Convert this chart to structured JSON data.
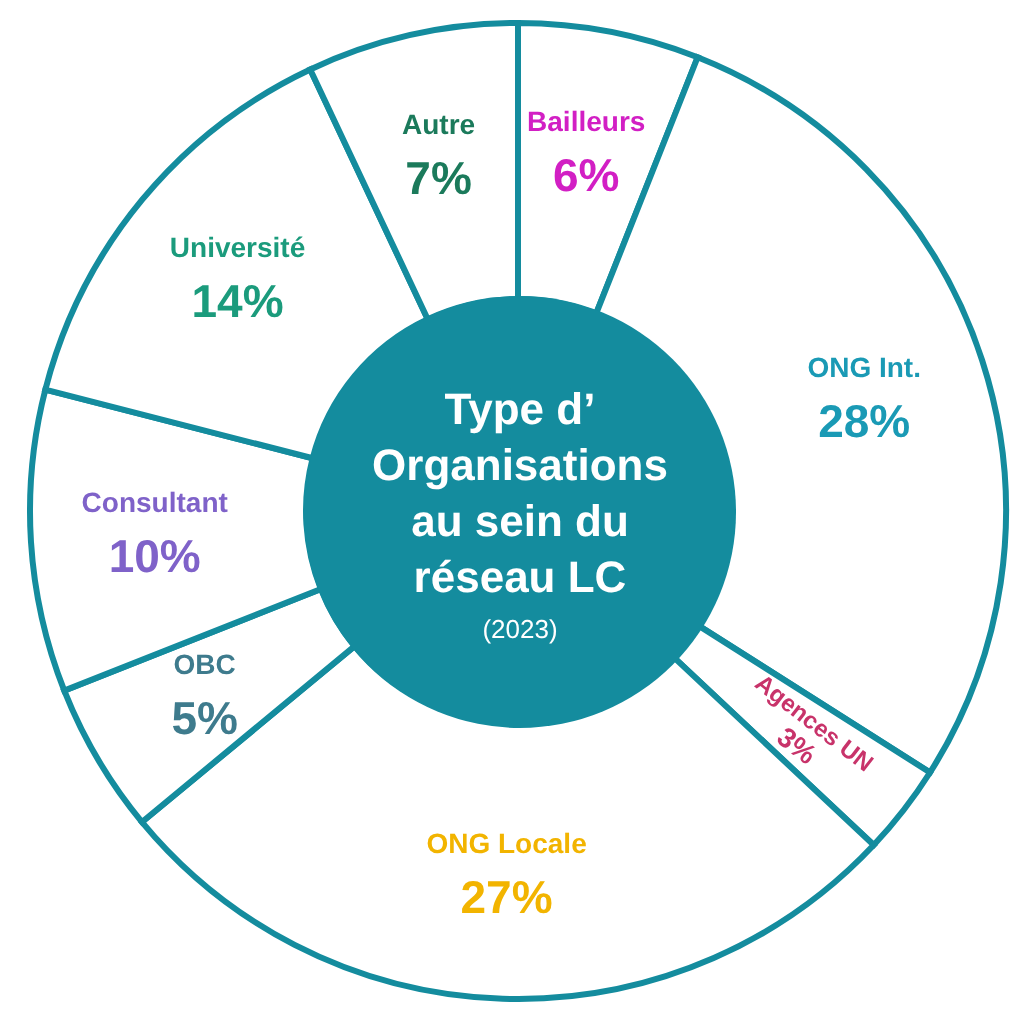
{
  "chart_data": {
    "type": "donut",
    "title": "Type d’ Organisations au sein du réseau LC",
    "subtitle": "(2023)",
    "categories": [
      "Bailleurs",
      "ONG Int.",
      "Agences UN",
      "ONG Locale",
      "OBC",
      "Consultant",
      "Université",
      "Autre"
    ],
    "values": [
      6,
      28,
      3,
      27,
      5,
      10,
      14,
      7
    ],
    "value_labels": [
      "6%",
      "28%",
      "3%",
      "27%",
      "5%",
      "10%",
      "14%",
      "7%"
    ],
    "colors": [
      "#ffffff",
      "#ffffff",
      "#ffffff",
      "#ffffff",
      "#ffffff",
      "#ffffff",
      "#ffffff",
      "#ffffff"
    ]
  }
}
